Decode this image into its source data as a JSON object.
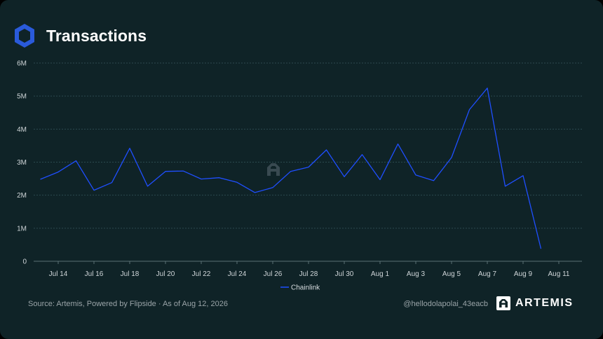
{
  "header": {
    "title": "Transactions",
    "logo_icon": "chainlink-hexagon-icon"
  },
  "footer": {
    "source": "Source: Artemis, Powered by Flipside · As of Aug 12, 2026",
    "handle": "@hellodolapolai_43eacb",
    "brand": "ARTEMIS",
    "brand_icon": "artemis-logo-icon"
  },
  "colors": {
    "background": "#0f2327",
    "line": "#1f4fff",
    "grid": "#2c4a4f",
    "text": "#cfd5d8"
  },
  "chart_data": {
    "type": "line",
    "title": "Transactions",
    "xlabel": "",
    "ylabel": "",
    "ylim": [
      0,
      6000000
    ],
    "y_ticks": [
      0,
      1000000,
      2000000,
      3000000,
      4000000,
      5000000,
      6000000
    ],
    "y_tick_labels": [
      "0",
      "1M",
      "2M",
      "3M",
      "4M",
      "5M",
      "6M"
    ],
    "x": [
      "Jul 13",
      "Jul 14",
      "Jul 15",
      "Jul 16",
      "Jul 17",
      "Jul 18",
      "Jul 19",
      "Jul 20",
      "Jul 21",
      "Jul 22",
      "Jul 23",
      "Jul 24",
      "Jul 25",
      "Jul 26",
      "Jul 27",
      "Jul 28",
      "Jul 29",
      "Jul 30",
      "Jul 31",
      "Aug 1",
      "Aug 2",
      "Aug 3",
      "Aug 4",
      "Aug 5",
      "Aug 6",
      "Aug 7",
      "Aug 8",
      "Aug 9",
      "Aug 10"
    ],
    "x_tick_labels": [
      "Jul 14",
      "Jul 16",
      "Jul 18",
      "Jul 20",
      "Jul 22",
      "Jul 24",
      "Jul 26",
      "Jul 28",
      "Jul 30",
      "Aug 1",
      "Aug 3",
      "Aug 5",
      "Aug 7",
      "Aug 9",
      "Aug 11"
    ],
    "x_tick_indices": [
      1,
      3,
      5,
      7,
      9,
      11,
      13,
      15,
      17,
      19,
      21,
      23,
      25,
      27,
      29
    ],
    "series": [
      {
        "name": "Chainlink",
        "color": "#1f4fff",
        "values": [
          2480000,
          2700000,
          3040000,
          2150000,
          2380000,
          3420000,
          2270000,
          2720000,
          2730000,
          2490000,
          2530000,
          2390000,
          2080000,
          2230000,
          2720000,
          2850000,
          3370000,
          2560000,
          3230000,
          2470000,
          3550000,
          2610000,
          2440000,
          3140000,
          4590000,
          5240000,
          2270000,
          2590000,
          380000
        ]
      }
    ],
    "legend": "bottom-center",
    "grid": true
  }
}
